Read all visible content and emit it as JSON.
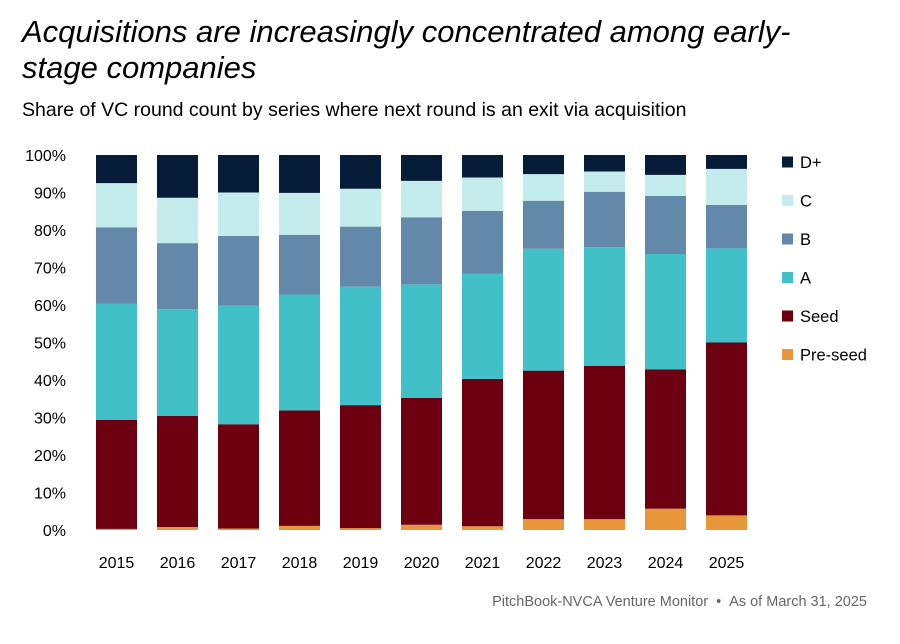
{
  "title": "Acquisitions are increasingly concentrated among early-stage companies",
  "subtitle": "Share of VC round count by series where next round is an exit via acquisition",
  "source": {
    "publisher": "PitchBook-NVCA Venture Monitor",
    "separator": "•",
    "date": "As of March 31, 2025"
  },
  "chart_data": {
    "type": "bar",
    "stacked": true,
    "percent": true,
    "categories": [
      "2015",
      "2016",
      "2017",
      "2018",
      "2019",
      "2020",
      "2021",
      "2022",
      "2023",
      "2024",
      "2025"
    ],
    "ylim": [
      0,
      100
    ],
    "yticks": [
      0,
      10,
      20,
      30,
      40,
      50,
      60,
      70,
      80,
      90,
      100
    ],
    "ytick_labels": [
      "0%",
      "10%",
      "20%",
      "30%",
      "40%",
      "50%",
      "60%",
      "70%",
      "80%",
      "90%",
      "100%"
    ],
    "legend_position": "right",
    "series": [
      {
        "name": "Pre-seed",
        "color": "#e8963a",
        "values": [
          0.3,
          0.8,
          0.4,
          1.1,
          0.5,
          1.4,
          1.0,
          2.9,
          2.9,
          5.7,
          3.9
        ]
      },
      {
        "name": "Seed",
        "color": "#6c0010",
        "values": [
          29.1,
          29.6,
          27.8,
          30.8,
          32.8,
          33.8,
          39.3,
          39.6,
          40.9,
          37.1,
          46.1
        ]
      },
      {
        "name": "A",
        "color": "#41c0c8",
        "values": [
          30.9,
          28.5,
          31.6,
          30.9,
          31.6,
          30.3,
          28.0,
          32.5,
          31.6,
          30.8,
          25.1
        ]
      },
      {
        "name": "B",
        "color": "#6488a9",
        "values": [
          20.4,
          17.6,
          18.6,
          15.9,
          16.0,
          17.9,
          16.8,
          12.8,
          14.8,
          15.5,
          11.6
        ]
      },
      {
        "name": "C",
        "color": "#c4ecec",
        "values": [
          11.8,
          12.1,
          11.6,
          11.2,
          10.1,
          9.7,
          8.9,
          7.1,
          5.4,
          5.6,
          9.6
        ]
      },
      {
        "name": "D+",
        "color": "#071c38",
        "values": [
          7.5,
          11.4,
          10.0,
          10.1,
          9.0,
          6.9,
          6.0,
          5.1,
          4.4,
          5.3,
          3.7
        ]
      }
    ]
  }
}
